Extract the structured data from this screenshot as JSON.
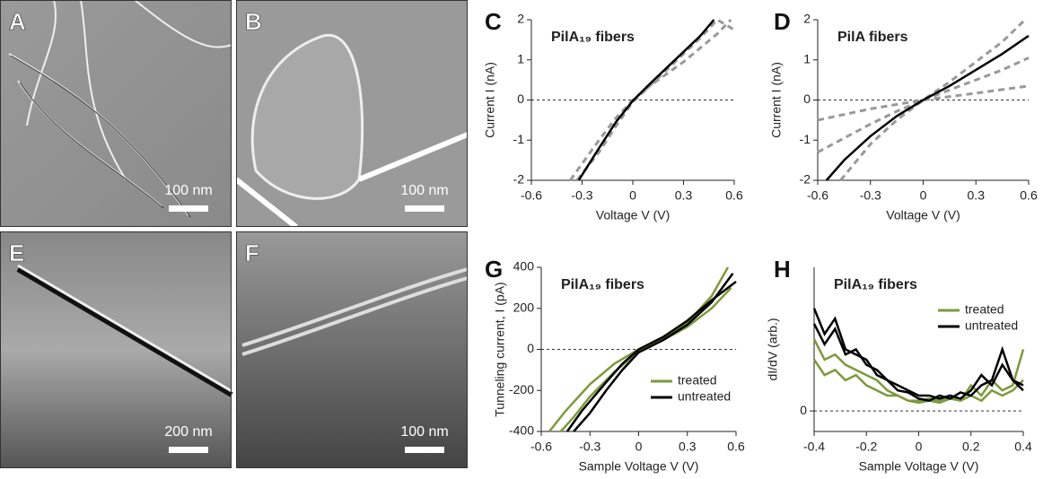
{
  "image_panels": [
    {
      "label": "A",
      "scale_bar": "100 nm"
    },
    {
      "label": "B",
      "scale_bar": "100 nm"
    },
    {
      "label": "E",
      "scale_bar": "200 nm"
    },
    {
      "label": "F",
      "scale_bar": "100 nm"
    }
  ],
  "chart_data": [
    {
      "type": "line",
      "panel_label": "C",
      "title": "PilA₁₉ fibers",
      "x_label": "Voltage V (V)",
      "y_label": "Current I (nA)",
      "xlim": [
        -0.6,
        0.6
      ],
      "xticks": [
        -0.6,
        -0.3,
        0,
        0.3,
        0.6
      ],
      "ylim": [
        -2,
        2
      ],
      "yticks": [
        -2,
        -1,
        0,
        1,
        2
      ],
      "zero_line": true,
      "series": [
        {
          "color": "#999999",
          "dashed": true,
          "x": [
            -0.37,
            -0.2,
            -0.1,
            0,
            0.1,
            0.2,
            0.3,
            0.4,
            0.5,
            0.58
          ],
          "values": [
            -2,
            -1.0,
            -0.45,
            0,
            0.35,
            0.65,
            0.95,
            1.3,
            1.65,
            2
          ]
        },
        {
          "color": "#999999",
          "dashed": true,
          "x": [
            -0.33,
            -0.2,
            -0.1,
            0,
            0.1,
            0.2,
            0.3,
            0.4,
            0.5,
            0.6
          ],
          "values": [
            -2,
            -1.3,
            -0.65,
            -0.05,
            0.35,
            0.75,
            1.15,
            1.55,
            2,
            1.75
          ]
        },
        {
          "color": "#000000",
          "dashed": false,
          "x": [
            -0.32,
            -0.2,
            -0.1,
            0,
            0.1,
            0.2,
            0.3,
            0.4,
            0.48
          ],
          "values": [
            -2,
            -1.2,
            -0.55,
            -0.02,
            0.4,
            0.8,
            1.2,
            1.6,
            2
          ]
        }
      ]
    },
    {
      "type": "line",
      "panel_label": "D",
      "title": "PilA fibers",
      "x_label": "Voltage V (V)",
      "y_label": "Current I (nA)",
      "xlim": [
        -0.6,
        0.6
      ],
      "xticks": [
        -0.6,
        -0.3,
        0,
        0.3,
        0.6
      ],
      "ylim": [
        -2,
        2
      ],
      "yticks": [
        -2,
        -1,
        0,
        1,
        2
      ],
      "zero_line": true,
      "series": [
        {
          "color": "#999999",
          "dashed": true,
          "x": [
            -0.47,
            -0.3,
            -0.15,
            0,
            0.15,
            0.3,
            0.45,
            0.58
          ],
          "values": [
            -2,
            -1.1,
            -0.5,
            0,
            0.45,
            0.95,
            1.45,
            2
          ]
        },
        {
          "color": "#999999",
          "dashed": true,
          "x": [
            -0.6,
            -0.3,
            -0.15,
            0,
            0.15,
            0.3,
            0.45,
            0.6
          ],
          "values": [
            -1.3,
            -0.6,
            -0.28,
            0,
            0.25,
            0.5,
            0.75,
            1.05
          ]
        },
        {
          "color": "#999999",
          "dashed": true,
          "x": [
            -0.6,
            -0.3,
            0,
            0.3,
            0.6
          ],
          "values": [
            -0.5,
            -0.22,
            0,
            0.17,
            0.35
          ]
        },
        {
          "color": "#000000",
          "dashed": false,
          "x": [
            -0.55,
            -0.45,
            -0.3,
            -0.15,
            0,
            0.15,
            0.3,
            0.45,
            0.6
          ],
          "values": [
            -2,
            -1.5,
            -0.9,
            -0.4,
            0,
            0.35,
            0.75,
            1.15,
            1.6
          ]
        }
      ]
    },
    {
      "type": "line",
      "panel_label": "G",
      "title": "PilA₁₉ fibers",
      "x_label": "Sample Voltage V (V)",
      "y_label": "Tunneling current, I (pA)",
      "xlim": [
        -0.6,
        0.6
      ],
      "xticks": [
        -0.6,
        -0.3,
        0,
        0.3,
        0.6
      ],
      "ylim": [
        -400,
        400
      ],
      "yticks": [
        -400,
        -200,
        0,
        200,
        400
      ],
      "zero_line": true,
      "legend": "lower right",
      "series": [
        {
          "name": "treated",
          "color": "#7c9a3c",
          "dashed": false,
          "x": [
            -0.55,
            -0.45,
            -0.3,
            -0.15,
            0,
            0.15,
            0.3,
            0.45,
            0.55
          ],
          "values": [
            -400,
            -300,
            -170,
            -70,
            0,
            50,
            130,
            260,
            400
          ]
        },
        {
          "color": "#7c9a3c",
          "dashed": false,
          "x": [
            -0.48,
            -0.4,
            -0.3,
            -0.15,
            0,
            0.15,
            0.3,
            0.45,
            0.57
          ],
          "values": [
            -400,
            -330,
            -230,
            -110,
            -10,
            45,
            110,
            200,
            300
          ]
        },
        {
          "name": "untreated",
          "color": "#000000",
          "dashed": false,
          "x": [
            -0.44,
            -0.35,
            -0.2,
            -0.1,
            0,
            0.15,
            0.3,
            0.45,
            0.6
          ],
          "values": [
            -400,
            -300,
            -160,
            -70,
            0,
            60,
            140,
            240,
            330
          ]
        },
        {
          "color": "#000000",
          "dashed": false,
          "x": [
            -0.4,
            -0.3,
            -0.2,
            -0.1,
            0,
            0.15,
            0.3,
            0.45,
            0.58
          ],
          "values": [
            -400,
            -310,
            -200,
            -100,
            -15,
            45,
            120,
            230,
            370
          ]
        }
      ]
    },
    {
      "type": "line",
      "panel_label": "H",
      "title": "PilA₁₉ fibers",
      "x_label": "Sample Voltage V (V)",
      "y_label": "dI/dV (arb.)",
      "xlim": [
        -0.4,
        0.4
      ],
      "xticks": [
        -0.4,
        -0.2,
        0,
        0.2,
        0.4
      ],
      "ylim": [
        -0.2,
        1.4
      ],
      "yticks": [
        0
      ],
      "zero_line": true,
      "legend": "upper right",
      "series": [
        {
          "name": "treated",
          "color": "#7c9a3c",
          "dashed": false,
          "x": [
            -0.4,
            -0.36,
            -0.32,
            -0.28,
            -0.24,
            -0.2,
            -0.16,
            -0.12,
            -0.08,
            -0.04,
            0,
            0.04,
            0.08,
            0.12,
            0.16,
            0.2,
            0.24,
            0.28,
            0.32,
            0.36,
            0.4
          ],
          "values": [
            0.7,
            0.5,
            0.55,
            0.45,
            0.4,
            0.35,
            0.3,
            0.2,
            0.15,
            0.1,
            0.1,
            0.12,
            0.1,
            0.15,
            0.1,
            0.25,
            0.15,
            0.3,
            0.2,
            0.25,
            0.6
          ]
        },
        {
          "color": "#7c9a3c",
          "dashed": false,
          "x": [
            -0.4,
            -0.36,
            -0.32,
            -0.28,
            -0.24,
            -0.2,
            -0.16,
            -0.12,
            -0.08,
            -0.04,
            0,
            0.04,
            0.08,
            0.12,
            0.16,
            0.2,
            0.24,
            0.28,
            0.32,
            0.36,
            0.4
          ],
          "values": [
            0.5,
            0.35,
            0.4,
            0.3,
            0.35,
            0.25,
            0.2,
            0.15,
            0.15,
            0.1,
            0.08,
            0.1,
            0.08,
            0.12,
            0.1,
            0.15,
            0.1,
            0.2,
            0.15,
            0.2,
            0.3
          ]
        },
        {
          "name": "untreated",
          "color": "#000000",
          "dashed": false,
          "x": [
            -0.4,
            -0.36,
            -0.32,
            -0.28,
            -0.24,
            -0.2,
            -0.16,
            -0.12,
            -0.08,
            -0.04,
            0,
            0.04,
            0.08,
            0.12,
            0.16,
            0.2,
            0.24,
            0.28,
            0.32,
            0.36,
            0.4
          ],
          "values": [
            1.0,
            0.75,
            0.9,
            0.6,
            0.55,
            0.5,
            0.35,
            0.3,
            0.25,
            0.2,
            0.15,
            0.15,
            0.12,
            0.15,
            0.12,
            0.2,
            0.35,
            0.25,
            0.45,
            0.3,
            0.2
          ]
        },
        {
          "color": "#000000",
          "dashed": false,
          "x": [
            -0.4,
            -0.36,
            -0.32,
            -0.28,
            -0.24,
            -0.2,
            -0.16,
            -0.12,
            -0.08,
            -0.04,
            0,
            0.04,
            0.08,
            0.12,
            0.16,
            0.2,
            0.24,
            0.28,
            0.32,
            0.36,
            0.4
          ],
          "values": [
            0.85,
            0.65,
            0.8,
            0.55,
            0.6,
            0.45,
            0.4,
            0.3,
            0.2,
            0.18,
            0.12,
            0.1,
            0.15,
            0.12,
            0.18,
            0.15,
            0.25,
            0.3,
            0.6,
            0.3,
            0.25
          ]
        }
      ]
    }
  ]
}
